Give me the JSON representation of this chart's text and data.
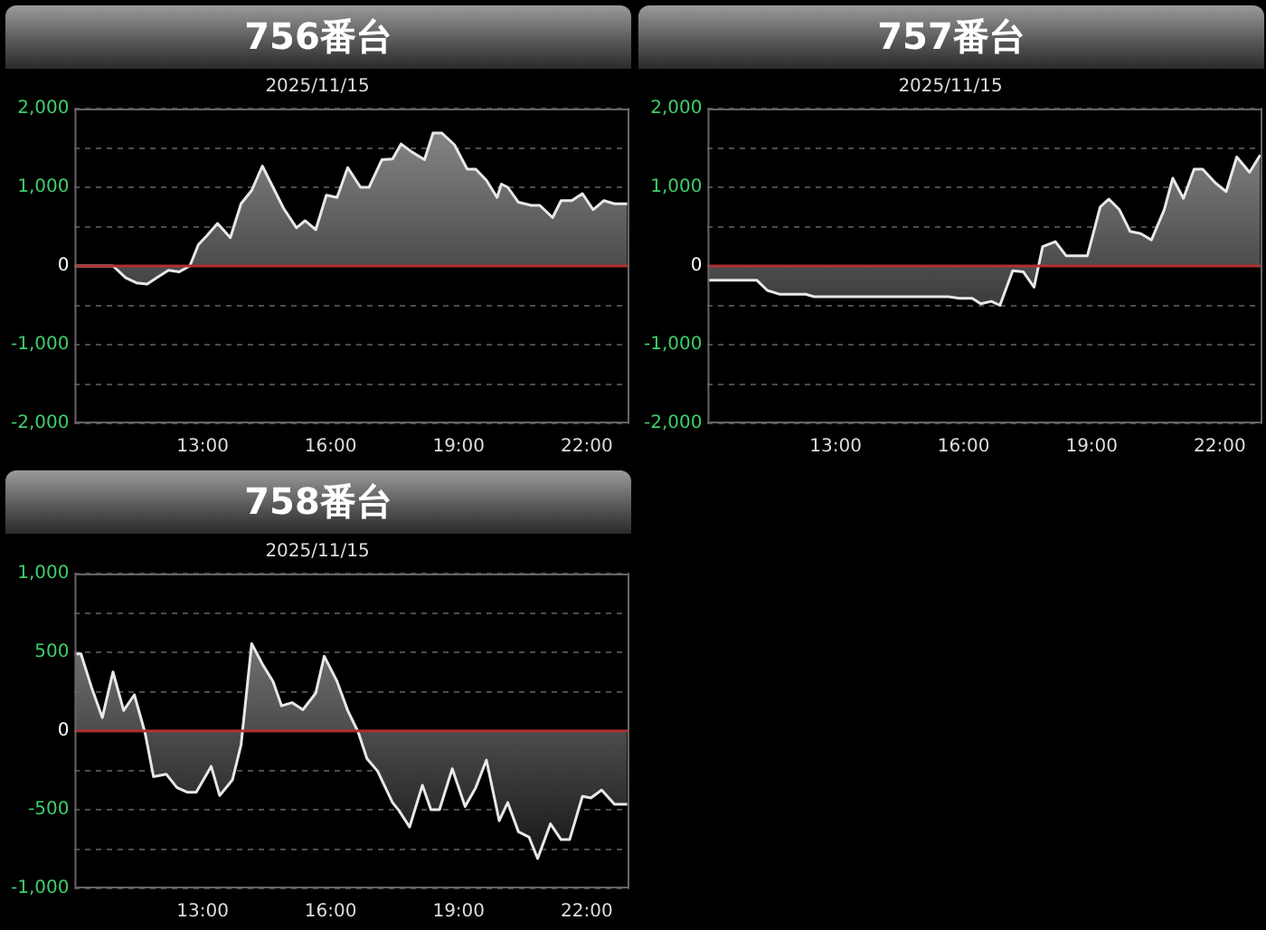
{
  "chart_data": [
    {
      "type": "area",
      "title": "756番台",
      "subtitle": "2025/11/15",
      "grid": "y",
      "xlim": [
        10,
        23
      ],
      "ylim": [
        -2000,
        2000
      ],
      "xticks": [
        {
          "value": 13,
          "label": "13:00"
        },
        {
          "value": 16,
          "label": "16:00"
        },
        {
          "value": 19,
          "label": "19:00"
        },
        {
          "value": 22,
          "label": "22:00"
        }
      ],
      "yticks": [
        {
          "value": 2000,
          "label": "2,000"
        },
        {
          "value": 1500,
          "label": null
        },
        {
          "value": 1000,
          "label": "1,000"
        },
        {
          "value": 500,
          "label": null
        },
        0,
        {
          "value": -500,
          "label": null
        },
        {
          "value": -1000,
          "label": "-1,000"
        },
        {
          "value": -1500,
          "label": null
        },
        {
          "value": -2000,
          "label": "-2,000"
        }
      ],
      "ref_lines": [
        {
          "axis": "y",
          "value": 0,
          "color": "#b03030"
        }
      ],
      "color": "#e8e8e8",
      "x": [
        10.0,
        10.9,
        11.2,
        11.45,
        11.7,
        11.95,
        12.2,
        12.45,
        12.7,
        12.9,
        13.1,
        13.35,
        13.65,
        13.9,
        14.15,
        14.4,
        14.65,
        14.9,
        15.2,
        15.4,
        15.65,
        15.9,
        16.15,
        16.4,
        16.7,
        16.9,
        17.2,
        17.45,
        17.65,
        17.9,
        18.2,
        18.4,
        18.6,
        18.9,
        19.2,
        19.4,
        19.65,
        19.9,
        20.0,
        20.15,
        20.4,
        20.7,
        20.9,
        21.2,
        21.4,
        21.65,
        21.9,
        22.15,
        22.4,
        22.65,
        22.95
      ],
      "values": [
        0,
        0,
        -150,
        -215,
        -230,
        -140,
        -55,
        -75,
        0,
        270,
        385,
        540,
        360,
        790,
        960,
        1270,
        1000,
        730,
        485,
        575,
        460,
        900,
        870,
        1250,
        1000,
        1000,
        1350,
        1360,
        1550,
        1450,
        1350,
        1690,
        1690,
        1540,
        1230,
        1230,
        1090,
        870,
        1040,
        1000,
        810,
        770,
        770,
        615,
        830,
        830,
        920,
        715,
        830,
        790,
        790
      ]
    },
    {
      "type": "area",
      "title": "757番台",
      "subtitle": "2025/11/15",
      "grid": "y",
      "xlim": [
        10,
        23
      ],
      "ylim": [
        -2000,
        2000
      ],
      "xticks": [
        {
          "value": 13,
          "label": "13:00"
        },
        {
          "value": 16,
          "label": "16:00"
        },
        {
          "value": 19,
          "label": "19:00"
        },
        {
          "value": 22,
          "label": "22:00"
        }
      ],
      "yticks": [
        {
          "value": 2000,
          "label": "2,000"
        },
        {
          "value": 1500,
          "label": null
        },
        {
          "value": 1000,
          "label": "1,000"
        },
        {
          "value": 500,
          "label": null
        },
        0,
        {
          "value": -500,
          "label": null
        },
        {
          "value": -1000,
          "label": "-1,000"
        },
        {
          "value": -1500,
          "label": null
        },
        {
          "value": -2000,
          "label": "-2,000"
        }
      ],
      "ref_lines": [
        {
          "axis": "y",
          "value": 0,
          "color": "#b03030"
        }
      ],
      "color": "#e8e8e8",
      "x": [
        10.0,
        11.15,
        11.4,
        11.7,
        12.3,
        12.5,
        15.65,
        15.9,
        16.2,
        16.4,
        16.65,
        16.85,
        17.15,
        17.4,
        17.65,
        17.85,
        18.15,
        18.4,
        18.9,
        19.2,
        19.4,
        19.65,
        19.9,
        20.15,
        20.4,
        20.7,
        20.9,
        21.15,
        21.4,
        21.6,
        21.9,
        22.15,
        22.4,
        22.7,
        22.95
      ],
      "values": [
        -180,
        -180,
        -310,
        -360,
        -360,
        -390,
        -390,
        -410,
        -410,
        -480,
        -450,
        -500,
        -60,
        -75,
        -270,
        245,
        310,
        130,
        130,
        750,
        850,
        715,
        440,
        410,
        330,
        715,
        1115,
        860,
        1230,
        1230,
        1055,
        945,
        1385,
        1190,
        1410
      ]
    },
    {
      "type": "area",
      "title": "758番台",
      "subtitle": "2025/11/15",
      "grid": "y",
      "xlim": [
        10,
        23
      ],
      "ylim": [
        -1000,
        1000
      ],
      "xticks": [
        {
          "value": 13,
          "label": "13:00"
        },
        {
          "value": 16,
          "label": "16:00"
        },
        {
          "value": 19,
          "label": "19:00"
        },
        {
          "value": 22,
          "label": "22:00"
        }
      ],
      "yticks": [
        {
          "value": 1000,
          "label": "1,000"
        },
        {
          "value": 750,
          "label": null
        },
        500,
        {
          "value": 250,
          "label": null
        },
        0,
        {
          "value": -250,
          "label": null
        },
        -500,
        {
          "value": -750,
          "label": null
        },
        {
          "value": -1000,
          "label": "-1,000"
        }
      ],
      "ref_lines": [
        {
          "axis": "y",
          "value": 0,
          "color": "#b03030"
        }
      ],
      "color": "#e8e8e8",
      "x": [
        10.0,
        10.15,
        10.4,
        10.65,
        10.9,
        11.15,
        11.4,
        11.65,
        11.85,
        12.15,
        12.4,
        12.65,
        12.85,
        13.2,
        13.4,
        13.7,
        13.9,
        14.15,
        14.4,
        14.65,
        14.85,
        15.1,
        15.35,
        15.65,
        15.85,
        16.15,
        16.4,
        16.65,
        16.85,
        17.1,
        17.45,
        17.6,
        17.85,
        18.15,
        18.35,
        18.55,
        18.85,
        19.15,
        19.4,
        19.65,
        19.95,
        20.15,
        20.4,
        20.65,
        20.85,
        21.15,
        21.4,
        21.6,
        21.9,
        22.1,
        22.35,
        22.65,
        22.95
      ],
      "values": [
        490,
        490,
        275,
        85,
        375,
        130,
        230,
        -10,
        -290,
        -275,
        -360,
        -390,
        -390,
        -225,
        -410,
        -310,
        -90,
        555,
        425,
        315,
        160,
        180,
        135,
        240,
        475,
        315,
        130,
        -10,
        -175,
        -255,
        -455,
        -505,
        -610,
        -345,
        -500,
        -500,
        -240,
        -480,
        -360,
        -185,
        -570,
        -455,
        -640,
        -675,
        -810,
        -590,
        -690,
        -690,
        -415,
        -425,
        -375,
        -465,
        -465
      ]
    }
  ]
}
